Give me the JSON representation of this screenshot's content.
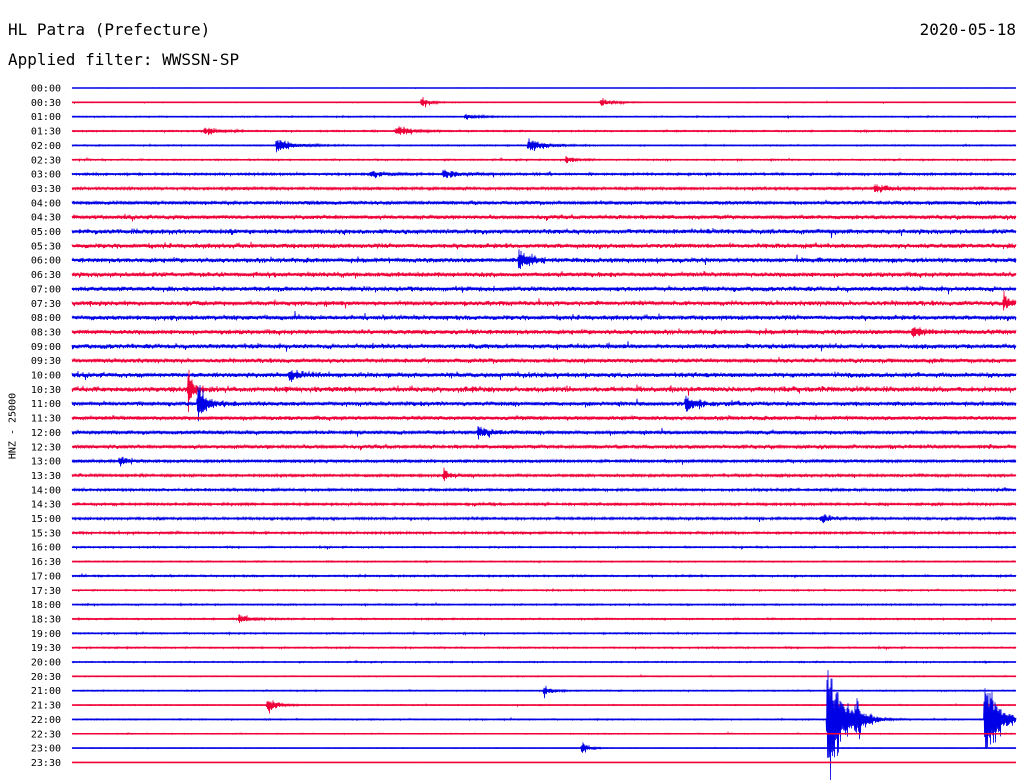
{
  "header": {
    "station": "HL Patra (Prefecture)",
    "date": "2020-05-18",
    "filter": "Applied filter: WWSSN-SP"
  },
  "chart_data": {
    "type": "line",
    "title": "HL Patra (Prefecture)",
    "subtitle": "Applied filter: WWSSN-SP",
    "date": "2020-05-18",
    "ylabel": "HNZ - 25000",
    "xlabel": "",
    "colors": {
      "even_row": "#0000e6",
      "odd_row": "#f00038"
    },
    "row_labels": [
      "00:00",
      "00:30",
      "01:00",
      "01:30",
      "02:00",
      "02:30",
      "03:00",
      "03:30",
      "04:00",
      "04:30",
      "05:00",
      "05:30",
      "06:00",
      "06:30",
      "07:00",
      "07:30",
      "08:00",
      "08:30",
      "09:00",
      "09:30",
      "10:00",
      "10:30",
      "11:00",
      "11:30",
      "12:00",
      "12:30",
      "13:00",
      "13:30",
      "14:00",
      "14:30",
      "15:00",
      "15:30",
      "16:00",
      "16:30",
      "17:00",
      "17:30",
      "18:00",
      "18:30",
      "19:00",
      "19:30",
      "20:00",
      "20:30",
      "21:00",
      "21:30",
      "22:00",
      "22:30",
      "23:00",
      "23:30"
    ],
    "noise_level": [
      0.2,
      0.3,
      0.5,
      0.6,
      0.5,
      0.6,
      0.9,
      1.1,
      1.4,
      1.6,
      1.9,
      1.9,
      1.9,
      1.9,
      1.9,
      1.9,
      1.9,
      1.9,
      1.9,
      1.7,
      1.9,
      2.2,
      1.7,
      1.6,
      1.5,
      1.5,
      1.2,
      1.1,
      1.0,
      1.0,
      1.0,
      0.9,
      0.6,
      0.5,
      0.7,
      0.6,
      0.6,
      0.6,
      0.6,
      0.6,
      0.5,
      0.4,
      0.5,
      0.4,
      0.5,
      0.4,
      0.3,
      0.2
    ],
    "events": [
      {
        "row": 1,
        "minute": 11.1,
        "amplitude": 6,
        "duration": 0.6
      },
      {
        "row": 1,
        "minute": 16.8,
        "amplitude": 6,
        "duration": 0.8
      },
      {
        "row": 2,
        "minute": 12.5,
        "amplitude": 4,
        "duration": 0.8
      },
      {
        "row": 3,
        "minute": 4.2,
        "amplitude": 7,
        "duration": 0.8
      },
      {
        "row": 3,
        "minute": 10.3,
        "amplitude": 7,
        "duration": 1.0
      },
      {
        "row": 4,
        "minute": 6.5,
        "amplitude": 9,
        "duration": 1.2
      },
      {
        "row": 4,
        "minute": 14.5,
        "amplitude": 9,
        "duration": 1.0
      },
      {
        "row": 5,
        "minute": 15.7,
        "amplitude": 4,
        "duration": 0.6
      },
      {
        "row": 6,
        "minute": 9.5,
        "amplitude": 5,
        "duration": 0.8
      },
      {
        "row": 6,
        "minute": 11.8,
        "amplitude": 5,
        "duration": 1.0
      },
      {
        "row": 7,
        "minute": 25.5,
        "amplitude": 6,
        "duration": 0.8
      },
      {
        "row": 12,
        "minute": 14.2,
        "amplitude": 12,
        "duration": 0.8
      },
      {
        "row": 15,
        "minute": 29.6,
        "amplitude": 10,
        "duration": 0.5
      },
      {
        "row": 17,
        "minute": 26.7,
        "amplitude": 7,
        "duration": 0.6
      },
      {
        "row": 20,
        "minute": 6.9,
        "amplitude": 8,
        "duration": 0.8
      },
      {
        "row": 21,
        "minute": 3.7,
        "amplitude": 30,
        "duration": 0.3
      },
      {
        "row": 22,
        "minute": 4.0,
        "amplitude": 25,
        "duration": 0.6
      },
      {
        "row": 22,
        "minute": 19.5,
        "amplitude": 9,
        "duration": 1.0
      },
      {
        "row": 24,
        "minute": 12.9,
        "amplitude": 8,
        "duration": 0.8
      },
      {
        "row": 26,
        "minute": 1.5,
        "amplitude": 6,
        "duration": 0.6
      },
      {
        "row": 27,
        "minute": 11.8,
        "amplitude": 7,
        "duration": 0.5
      },
      {
        "row": 30,
        "minute": 23.8,
        "amplitude": 7,
        "duration": 0.6
      },
      {
        "row": 37,
        "minute": 5.3,
        "amplitude": 7,
        "duration": 0.6
      },
      {
        "row": 42,
        "minute": 15.0,
        "amplitude": 7,
        "duration": 0.5
      },
      {
        "row": 43,
        "minute": 6.2,
        "amplitude": 12,
        "duration": 0.6
      },
      {
        "row": 44,
        "minute": 24.0,
        "amplitude": 100,
        "duration": 0.9
      },
      {
        "row": 44,
        "minute": 24.9,
        "amplitude": 18,
        "duration": 0.6
      },
      {
        "row": 44,
        "minute": 29.0,
        "amplitude": 70,
        "duration": 0.8
      },
      {
        "row": 46,
        "minute": 16.2,
        "amplitude": 10,
        "duration": 0.4
      }
    ]
  }
}
